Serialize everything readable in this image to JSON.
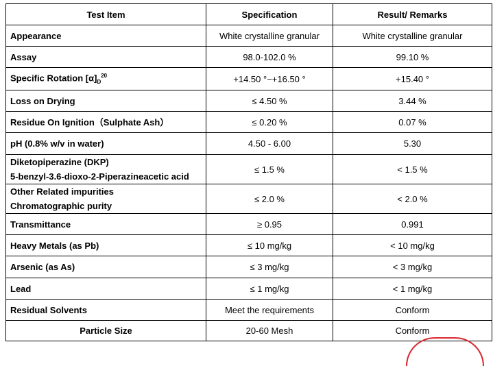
{
  "table": {
    "headers": [
      "Test Item",
      "Specification",
      "Result/ Remarks"
    ],
    "rows": [
      {
        "item": "Appearance",
        "spec": "White crystalline granular",
        "result": "White crystalline granular"
      },
      {
        "item": "Assay",
        "spec": "98.0-102.0 %",
        "result": "99.10 %"
      },
      {
        "item_main": "Specific Rotation [α]",
        "item_sub": "D",
        "item_sup": "20",
        "spec": "+14.50 °~+16.50 °",
        "result": "+15.40 °"
      },
      {
        "item": "Loss on Drying",
        "spec": "≤ 4.50 %",
        "result": "3.44 %"
      },
      {
        "item": "Residue On Ignition（Sulphate Ash）",
        "spec": "≤ 0.20 %",
        "result": "0.07 %"
      },
      {
        "item": "pH (0.8% w/v in water)",
        "spec": "4.50 - 6.00",
        "result": "5.30"
      },
      {
        "item_line1": "Diketopiperazine (DKP)",
        "item_line2": "5-benzyl-3.6-dioxo-2-Piperazineacetic acid",
        "spec": "≤ 1.5 %",
        "result": "< 1.5 %"
      },
      {
        "item_line1": "Other Related impurities",
        "item_line2": "Chromatographic purity",
        "spec": "≤ 2.0 %",
        "result": "< 2.0 %"
      },
      {
        "item": "Transmittance",
        "spec": "≥ 0.95",
        "result": "0.991"
      },
      {
        "item": "Heavy Metals (as Pb)",
        "spec": "≤ 10 mg/kg",
        "result": "< 10 mg/kg"
      },
      {
        "item": "Arsenic (as As)",
        "spec": "≤ 3 mg/kg",
        "result": "< 3 mg/kg"
      },
      {
        "item": "Lead",
        "spec": "≤ 1 mg/kg",
        "result": "< 1 mg/kg"
      },
      {
        "item": "Residual Solvents",
        "spec": "Meet the requirements",
        "result": "Conform"
      },
      {
        "item": "Particle Size",
        "spec": "20-60 Mesh",
        "result": "Conform"
      }
    ]
  },
  "colors": {
    "border": "#000000",
    "stamp": "#d8262f"
  }
}
